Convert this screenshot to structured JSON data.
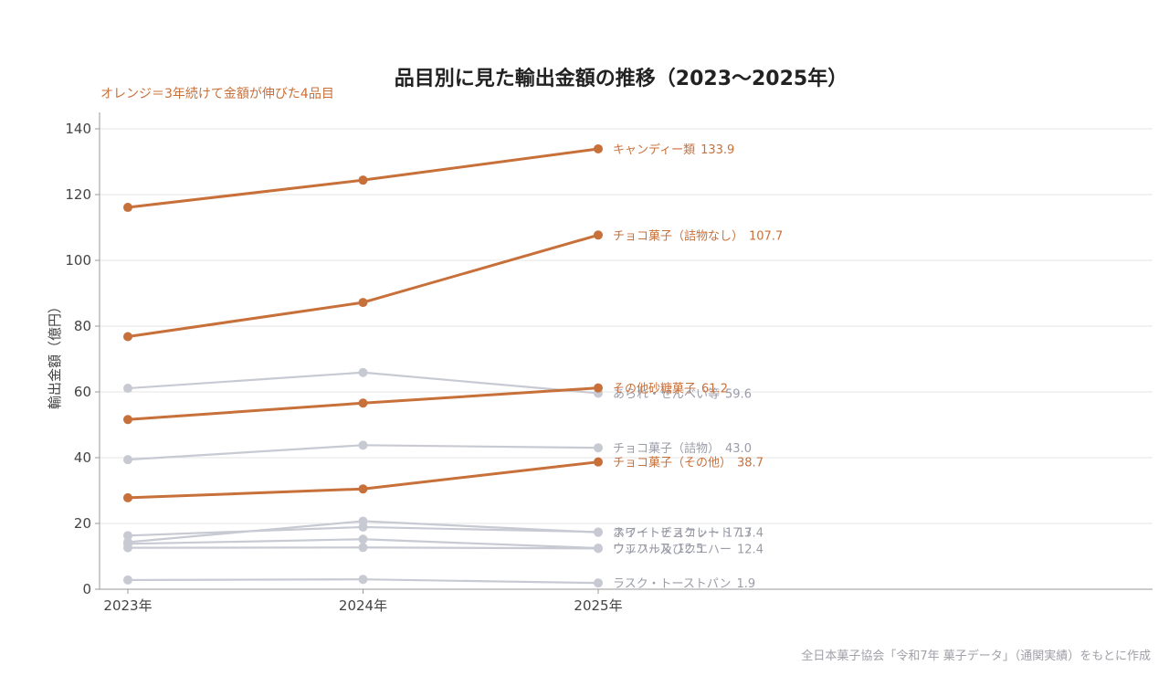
{
  "chart_data": {
    "type": "line",
    "title": "品目別に見た輸出金額の推移（2023〜2025年）",
    "subtitle": "オレンジ＝3年続けて金額が伸びた4品目",
    "ylabel": "輸出金額（億円）",
    "xlabel": "",
    "source": "全日本菓子協会「令和7年 菓子データ」（通関実績）をもとに作成",
    "categories": [
      "2023年",
      "2024年",
      "2025年"
    ],
    "ylim": [
      0,
      145
    ],
    "yticks": [
      0,
      20,
      40,
      60,
      80,
      100,
      120,
      140
    ],
    "grid": true,
    "colors": {
      "highlight": "#c8703a",
      "muted": "#c8cad3"
    },
    "series": [
      {
        "name": "キャンディー類",
        "values": [
          116.1,
          124.4,
          133.9
        ],
        "label": "133.9",
        "highlight": true
      },
      {
        "name": "チョコ菓子（詰物なし）",
        "values": [
          76.8,
          87.2,
          107.7
        ],
        "label": "107.7",
        "highlight": true
      },
      {
        "name": "あられ・せんべい等",
        "values": [
          61.1,
          65.9,
          59.6
        ],
        "label": "59.6",
        "highlight": false
      },
      {
        "name": "その他砂糖菓子",
        "values": [
          51.6,
          56.6,
          61.2
        ],
        "label": "61.2",
        "highlight": true
      },
      {
        "name": "チョコ菓子（詰物）",
        "values": [
          39.4,
          43.8,
          43.0
        ],
        "label": "43.0",
        "highlight": false
      },
      {
        "name": "チョコ菓子（その他）",
        "values": [
          27.8,
          30.5,
          38.7
        ],
        "label": "38.7",
        "highlight": true
      },
      {
        "name": "ホワイトチョコレート",
        "values": [
          16.3,
          18.9,
          17.4
        ],
        "label": "17.4",
        "highlight": false
      },
      {
        "name": "スイートビスケット",
        "values": [
          14.3,
          20.7,
          17.3
        ],
        "label": "17.3",
        "highlight": false
      },
      {
        "name": "ウエハース",
        "values": [
          13.8,
          15.2,
          12.5
        ],
        "label": "12.5",
        "highlight": false
      },
      {
        "name": "ワッフル及びウエハー",
        "values": [
          12.6,
          12.7,
          12.4
        ],
        "label": "12.4",
        "highlight": false
      },
      {
        "name": "ラスク・トーストパン",
        "values": [
          2.8,
          3.0,
          1.9
        ],
        "label": "1.9",
        "highlight": false
      }
    ]
  }
}
